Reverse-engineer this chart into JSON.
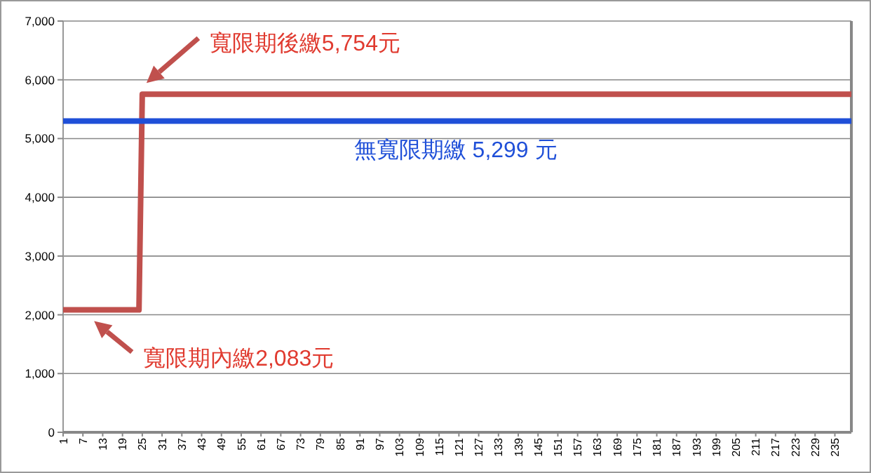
{
  "chart_data": {
    "type": "line",
    "xlim": [
      1,
      240
    ],
    "xticks": [
      1,
      7,
      13,
      19,
      25,
      31,
      37,
      43,
      49,
      55,
      61,
      67,
      73,
      79,
      85,
      91,
      97,
      103,
      109,
      115,
      121,
      127,
      133,
      139,
      145,
      151,
      157,
      163,
      169,
      175,
      181,
      187,
      193,
      199,
      205,
      211,
      217,
      223,
      229,
      235
    ],
    "ylim": [
      0,
      7000
    ],
    "yticks": [
      {
        "value": 0,
        "label": "0"
      },
      {
        "value": 1000,
        "label": "1,000"
      },
      {
        "value": 2000,
        "label": "2,000"
      },
      {
        "value": 3000,
        "label": "3,000"
      },
      {
        "value": 4000,
        "label": "4,000"
      },
      {
        "value": 5000,
        "label": "5,000"
      },
      {
        "value": 6000,
        "label": "6,000"
      },
      {
        "value": 7000,
        "label": "7,000"
      }
    ],
    "grid": "y",
    "marker": "none",
    "line_style": "solid",
    "series": [
      {
        "color": "#c0504d",
        "x": [
          1,
          24,
          25,
          240
        ],
        "values": [
          2083,
          2083,
          5754,
          5754
        ]
      },
      {
        "color": "#1f4fd8",
        "x": [
          1,
          240
        ],
        "values": [
          5299,
          5299
        ]
      }
    ],
    "annotations": [
      "寬限期後繳5,754元",
      {
        "text": "無寬限期繳 5,299 元",
        "x": 120,
        "y": 5299
      },
      "寬限期內繳2,083元"
    ]
  }
}
